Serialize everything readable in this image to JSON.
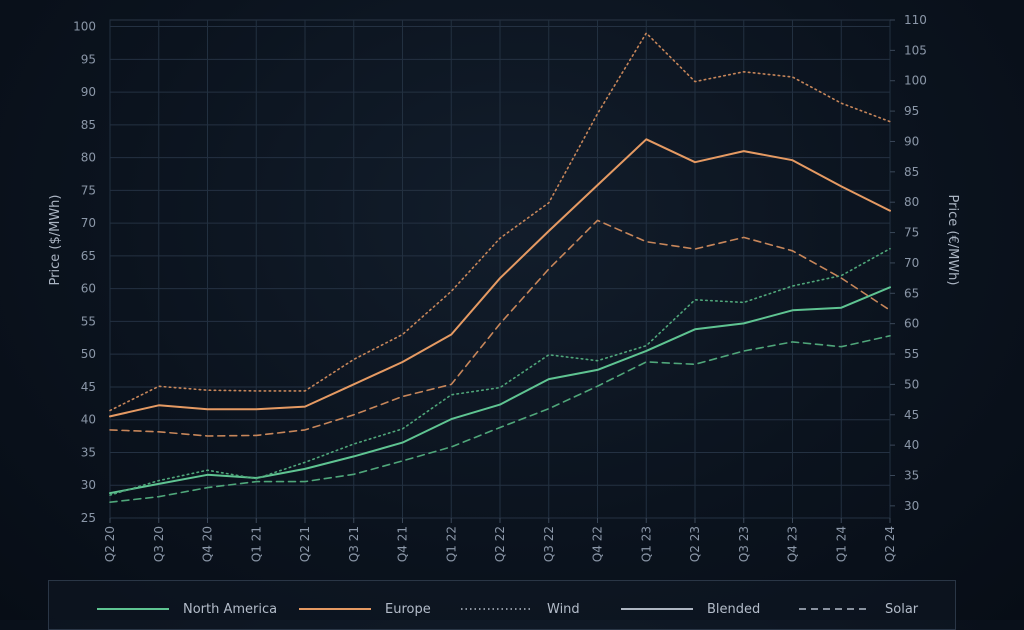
{
  "chart_data": {
    "type": "line",
    "categories": [
      "Q2 20",
      "Q3 20",
      "Q4 20",
      "Q1 21",
      "Q2 21",
      "Q3 21",
      "Q4 21",
      "Q1 22",
      "Q2 22",
      "Q3 22",
      "Q4 22",
      "Q1 23",
      "Q2 23",
      "Q3 23",
      "Q4 23",
      "Q1 24",
      "Q2 24"
    ],
    "ylabel": "Price ($/MWh)",
    "ylabel_right": "Price (€/MWh)",
    "ylim": [
      25,
      101
    ],
    "yticks": [
      25,
      30,
      35,
      40,
      45,
      50,
      55,
      60,
      65,
      70,
      75,
      80,
      85,
      90,
      95,
      100
    ],
    "ylim_right": [
      28,
      110
    ],
    "yticks_right": [
      30,
      35,
      40,
      45,
      50,
      55,
      60,
      65,
      70,
      75,
      80,
      85,
      90,
      95,
      100,
      105,
      110
    ],
    "series": [
      {
        "name": "North America",
        "axis": "left",
        "color": "#5fc492",
        "style": "solid",
        "values": [
          28.8,
          30.2,
          31.6,
          31.1,
          32.5,
          34.4,
          36.5,
          40.1,
          42.3,
          46.2,
          47.6,
          50.5,
          53.8,
          54.7,
          56.7,
          57.1,
          60.2
        ]
      },
      {
        "name": "Europe",
        "axis": "left",
        "color": "#e59a63",
        "style": "solid",
        "values": [
          40.5,
          42.2,
          41.6,
          41.6,
          42.0,
          45.4,
          48.8,
          53.0,
          61.6,
          68.8,
          75.8,
          82.8,
          79.3,
          81.0,
          79.6,
          75.6,
          71.9
        ]
      },
      {
        "name": "Wind",
        "axis": "left",
        "color": "#c7865a",
        "style": "dotted",
        "values": [
          41.4,
          45.1,
          44.5,
          44.4,
          44.4,
          49.2,
          53.0,
          59.6,
          67.7,
          73.1,
          86.7,
          99.0,
          91.6,
          93.1,
          92.3,
          88.3,
          85.5
        ]
      },
      {
        "name": "Wind",
        "axis": "left",
        "color": "#4fa67a",
        "style": "dotted",
        "values": [
          28.5,
          30.7,
          32.3,
          31.0,
          33.5,
          36.3,
          38.6,
          43.8,
          44.9,
          49.9,
          49.0,
          51.3,
          58.3,
          57.9,
          60.4,
          62.0,
          66.1
        ]
      },
      {
        "name": "Solar",
        "axis": "right",
        "color": "#c7865a",
        "style": "dashed",
        "values": [
          42.5,
          42.2,
          41.5,
          41.6,
          42.5,
          45.0,
          48.0,
          50.0,
          60.0,
          69.0,
          77.0,
          73.5,
          72.3,
          74.2,
          72.0,
          67.5,
          62.2
        ]
      },
      {
        "name": "Solar",
        "axis": "right",
        "color": "#4fa67a",
        "style": "dashed",
        "values": [
          30.6,
          31.5,
          33.0,
          34.0,
          34.0,
          35.2,
          37.4,
          39.7,
          42.9,
          46.0,
          49.7,
          53.7,
          53.3,
          55.5,
          57.0,
          56.2,
          58.0
        ]
      }
    ],
    "legend": [
      {
        "label": "North America",
        "color": "#5fc492",
        "style": "solid"
      },
      {
        "label": "Europe",
        "color": "#e59a63",
        "style": "solid"
      },
      {
        "label": "Wind",
        "color": "#8a93a0",
        "style": "dotted"
      },
      {
        "label": "Blended",
        "color": "#aeb6c2",
        "style": "solid"
      },
      {
        "label": "Solar",
        "color": "#8a93a0",
        "style": "dashed"
      }
    ],
    "legend_position": "bottom",
    "grid": true
  }
}
